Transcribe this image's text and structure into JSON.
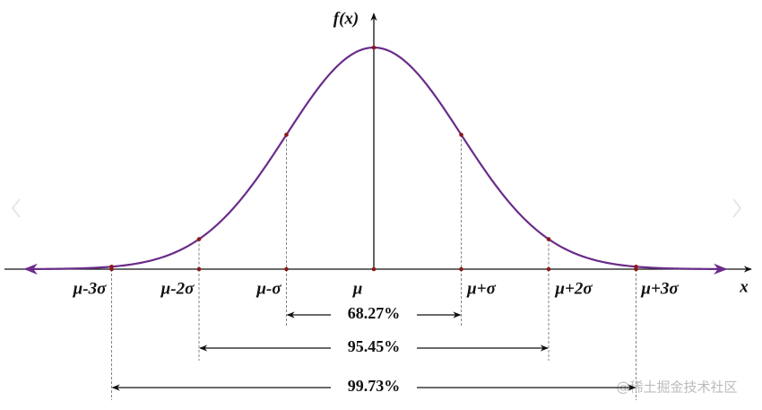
{
  "y_axis_label": "f(x)",
  "x_axis_label": "x",
  "points": [
    "μ-3σ",
    "μ-2σ",
    "μ-σ",
    "μ",
    "μ+σ",
    "μ+2σ",
    "μ+3σ"
  ],
  "intervals": [
    "68.27%",
    "95.45%",
    "99.73%"
  ],
  "watermark": "@稀土掘金技术社区"
}
